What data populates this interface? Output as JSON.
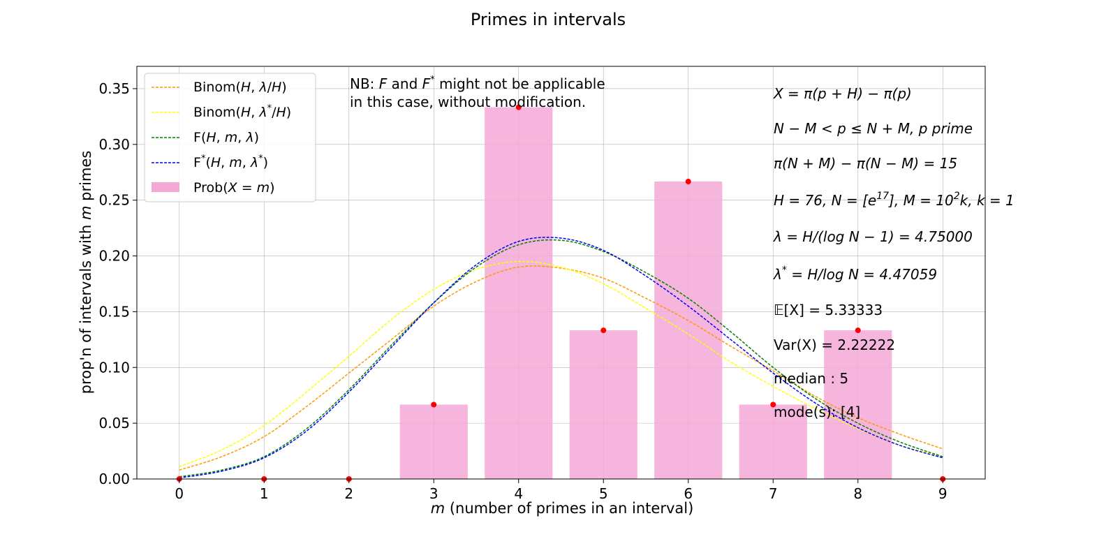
{
  "chart_data": {
    "type": "bar",
    "title": "Primes in intervals",
    "xlabel_var": "m",
    "xlabel_rest": " (number of primes in an interval)",
    "ylabel_start": "prop'n of intervals with ",
    "ylabel_var": "m",
    "ylabel_end": " primes",
    "xlim": [
      -0.5,
      9.5
    ],
    "ylim": [
      0,
      0.37
    ],
    "x_ticks": [
      0,
      1,
      2,
      3,
      4,
      5,
      6,
      7,
      8,
      9
    ],
    "x_tick_labels": [
      "0",
      "1",
      "2",
      "3",
      "4",
      "5",
      "6",
      "7",
      "8",
      "9"
    ],
    "y_ticks": [
      0,
      0.05,
      0.1,
      0.15,
      0.2,
      0.25,
      0.3,
      0.35
    ],
    "y_tick_labels": [
      "0.00",
      "0.05",
      "0.10",
      "0.15",
      "0.20",
      "0.25",
      "0.30",
      "0.35"
    ],
    "grid": true,
    "legend_position": "top-left",
    "bars": {
      "name": "Prob(X = m)",
      "color": "#f5a8d6",
      "x": [
        0,
        1,
        2,
        3,
        4,
        5,
        6,
        7,
        8,
        9
      ],
      "values": [
        0,
        0,
        0,
        0.0667,
        0.3333,
        0.1333,
        0.2667,
        0.0667,
        0.1333,
        0
      ]
    },
    "points": {
      "color": "#ff0000",
      "x": [
        0,
        1,
        2,
        3,
        4,
        5,
        6,
        7,
        8,
        9
      ],
      "values": [
        0,
        0,
        0,
        0.0667,
        0.3333,
        0.1333,
        0.2667,
        0.0667,
        0.1333,
        0
      ]
    },
    "series": [
      {
        "name": "Binom(H, λ/H)",
        "color": "#ff9900",
        "style": "dashed",
        "x": [
          0,
          0.5,
          1,
          1.5,
          2,
          2.5,
          3,
          3.5,
          4,
          4.5,
          5,
          5.5,
          6,
          6.5,
          7,
          7.5,
          8,
          8.5,
          9
        ],
        "values": [
          0.008,
          0.02,
          0.038,
          0.065,
          0.095,
          0.125,
          0.155,
          0.177,
          0.19,
          0.189,
          0.18,
          0.162,
          0.142,
          0.119,
          0.097,
          0.074,
          0.055,
          0.04,
          0.027
        ]
      },
      {
        "name": "Binom(H, λ*/H)",
        "color": "#ffff00",
        "style": "dashed",
        "x": [
          0,
          0.5,
          1,
          1.5,
          2,
          2.5,
          3,
          3.5,
          4,
          4.5,
          5,
          5.5,
          6,
          6.5,
          7,
          7.5,
          8,
          8.5,
          9
        ],
        "values": [
          0.011,
          0.026,
          0.048,
          0.078,
          0.11,
          0.143,
          0.17,
          0.188,
          0.195,
          0.19,
          0.175,
          0.153,
          0.13,
          0.105,
          0.083,
          0.063,
          0.045,
          0.03,
          0.02
        ]
      },
      {
        "name": "F(H, m, λ)",
        "color": "#008000",
        "style": "dashed",
        "x": [
          0,
          0.5,
          1,
          1.5,
          2,
          2.5,
          3,
          3.5,
          4,
          4.5,
          5,
          5.5,
          6,
          6.5,
          7,
          7.5,
          8,
          8.5,
          9
        ],
        "values": [
          0.002,
          0.008,
          0.02,
          0.045,
          0.08,
          0.12,
          0.158,
          0.19,
          0.21,
          0.214,
          0.204,
          0.185,
          0.162,
          0.132,
          0.1,
          0.072,
          0.05,
          0.033,
          0.02
        ]
      },
      {
        "name": "F*(H, m, λ*)",
        "color": "#0000ff",
        "style": "dashed",
        "x": [
          0,
          0.5,
          1,
          1.5,
          2,
          2.5,
          3,
          3.5,
          4,
          4.5,
          5,
          5.5,
          6,
          6.5,
          7,
          7.5,
          8,
          8.5,
          9
        ],
        "values": [
          0.001,
          0.007,
          0.019,
          0.043,
          0.078,
          0.118,
          0.158,
          0.192,
          0.213,
          0.216,
          0.205,
          0.182,
          0.155,
          0.125,
          0.095,
          0.068,
          0.046,
          0.03,
          0.019
        ]
      }
    ],
    "legend": {
      "binom": "Binom",
      "f": "F",
      "prob": "Prob"
    },
    "note": {
      "line1_pre": "NB: ",
      "F": "F",
      "and": " and ",
      "Fstar": "F",
      "star": "*",
      "line1_post": " might not be applicable",
      "line2": "in this case, without modification."
    },
    "annotations": {
      "a1": "X = π(p + H) − π(p)",
      "a2": "N − M < p ≤ N + M, p prime",
      "a3": "π(N + M) − π(N − M) = 15",
      "a4_pre": "H = 76, N = [e",
      "a4_sup": "17",
      "a4_mid": "], M = 10",
      "a4_sup2": "2",
      "a4_post": "k, k = 1",
      "a5": "λ = H/(log N − 1) = 4.75000",
      "a6_pre": "λ",
      "a6_sup": "*",
      "a6_post": " = H/log N = 4.47059",
      "a7": "𝔼[X] = 5.33333",
      "a8": "Var(X) = 2.22222",
      "a9": "median : 5",
      "a10": "mode(s): [4]"
    }
  }
}
